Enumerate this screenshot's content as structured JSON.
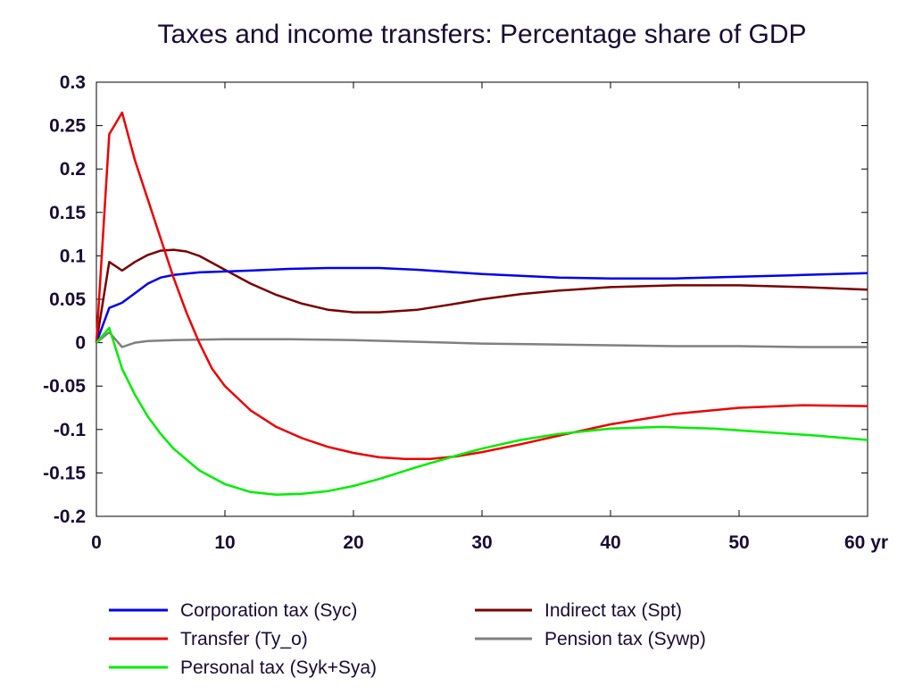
{
  "chart_data": {
    "type": "line",
    "title": "Taxes and income transfers: Percentage share of GDP",
    "xlabel": "",
    "ylabel": "",
    "xlim": [
      0,
      60
    ],
    "ylim": [
      -0.2,
      0.3
    ],
    "x_ticks": [
      0,
      10,
      20,
      30,
      40,
      50,
      60
    ],
    "x_tick_labels": [
      "0",
      "10",
      "20",
      "30",
      "40",
      "50",
      "60 yr"
    ],
    "y_ticks": [
      0.3,
      0.25,
      0.2,
      0.15,
      0.1,
      0.05,
      0,
      -0.05,
      -0.1,
      -0.15,
      -0.2
    ],
    "y_tick_labels": [
      "0.3",
      "0.25",
      "0.2",
      "0.15",
      "0.1",
      "0.05",
      "0",
      "-0.05",
      "-0.1",
      "-0.15",
      "-0.2"
    ],
    "grid": false,
    "legend_placement": "bottom",
    "series": [
      {
        "name": "Corporation tax (Syc)",
        "color": "#0000ee",
        "x": [
          0,
          1,
          2,
          3,
          4,
          5,
          6,
          8,
          10,
          12,
          15,
          18,
          20,
          22,
          25,
          28,
          30,
          33,
          36,
          40,
          45,
          50,
          55,
          60
        ],
        "y": [
          0,
          0.04,
          0.046,
          0.057,
          0.068,
          0.075,
          0.078,
          0.081,
          0.082,
          0.083,
          0.085,
          0.086,
          0.086,
          0.086,
          0.084,
          0.081,
          0.079,
          0.077,
          0.075,
          0.074,
          0.074,
          0.076,
          0.078,
          0.08
        ]
      },
      {
        "name": "Indirect tax (Spt)",
        "color": "#7a0000",
        "x": [
          0,
          1,
          2,
          3,
          4,
          5,
          6,
          7,
          8,
          10,
          12,
          14,
          16,
          18,
          20,
          22,
          25,
          28,
          30,
          33,
          36,
          40,
          45,
          50,
          55,
          60
        ],
        "y": [
          0,
          0.093,
          0.083,
          0.093,
          0.101,
          0.106,
          0.107,
          0.105,
          0.1,
          0.084,
          0.068,
          0.055,
          0.045,
          0.038,
          0.035,
          0.035,
          0.038,
          0.045,
          0.05,
          0.056,
          0.06,
          0.064,
          0.066,
          0.066,
          0.064,
          0.061
        ]
      },
      {
        "name": "Transfer (Ty_o)",
        "color": "#ee0000",
        "x": [
          0,
          1,
          2,
          3,
          4,
          5,
          6,
          7,
          8,
          9,
          10,
          12,
          14,
          16,
          18,
          20,
          22,
          24,
          26,
          28,
          30,
          33,
          36,
          40,
          45,
          50,
          55,
          60
        ],
        "y": [
          0,
          0.24,
          0.265,
          0.21,
          0.165,
          0.12,
          0.075,
          0.035,
          0.0,
          -0.03,
          -0.05,
          -0.078,
          -0.097,
          -0.11,
          -0.12,
          -0.127,
          -0.132,
          -0.134,
          -0.134,
          -0.131,
          -0.126,
          -0.117,
          -0.107,
          -0.094,
          -0.082,
          -0.075,
          -0.072,
          -0.073
        ]
      },
      {
        "name": "Pension tax (Sywp)",
        "color": "#808080",
        "x": [
          0,
          1,
          2,
          3,
          4,
          6,
          10,
          15,
          20,
          25,
          30,
          35,
          40,
          45,
          50,
          55,
          60
        ],
        "y": [
          0,
          0.012,
          -0.005,
          0.0,
          0.002,
          0.003,
          0.004,
          0.004,
          0.003,
          0.001,
          -0.001,
          -0.002,
          -0.003,
          -0.004,
          -0.004,
          -0.005,
          -0.005
        ]
      },
      {
        "name": "Personal tax (Syk+Sya)",
        "color": "#00ee00",
        "x": [
          0,
          1,
          2,
          3,
          4,
          5,
          6,
          8,
          10,
          12,
          14,
          16,
          18,
          20,
          22,
          25,
          28,
          30,
          33,
          36,
          40,
          44,
          48,
          52,
          56,
          60
        ],
        "y": [
          0,
          0.017,
          -0.03,
          -0.06,
          -0.085,
          -0.105,
          -0.122,
          -0.147,
          -0.163,
          -0.172,
          -0.175,
          -0.174,
          -0.171,
          -0.165,
          -0.157,
          -0.143,
          -0.13,
          -0.122,
          -0.112,
          -0.105,
          -0.099,
          -0.097,
          -0.099,
          -0.103,
          -0.107,
          -0.112
        ]
      }
    ],
    "legend": {
      "items": [
        {
          "series_index": 0,
          "label": "Corporation tax (Syc)"
        },
        {
          "series_index": 1,
          "label": "Indirect tax (Spt)"
        },
        {
          "series_index": 2,
          "label": "Transfer (Ty_o)"
        },
        {
          "series_index": 3,
          "label": "Pension tax (Sywp)"
        },
        {
          "series_index": 4,
          "label": "Personal tax (Syk+Sya)"
        }
      ]
    }
  }
}
